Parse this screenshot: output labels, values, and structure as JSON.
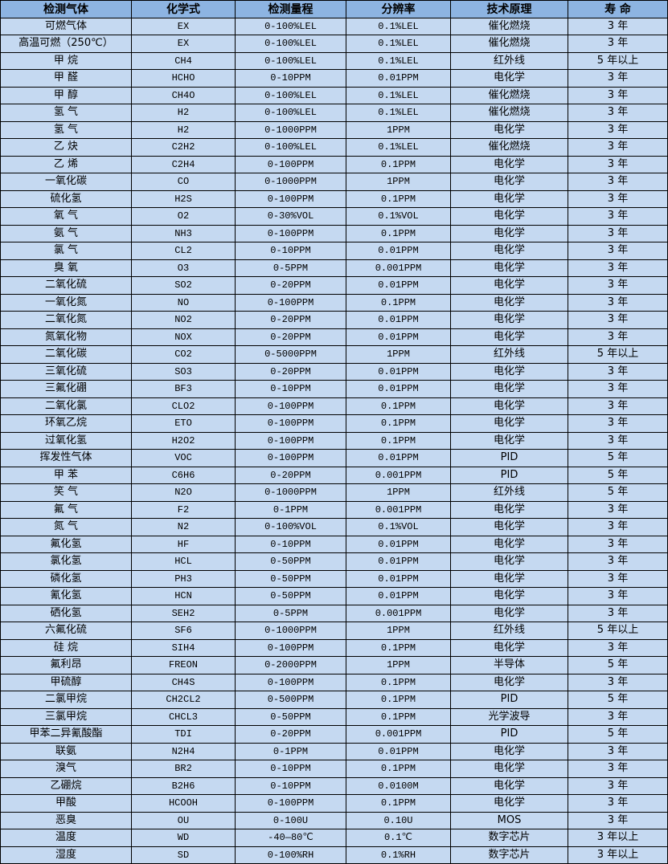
{
  "colors": {
    "header_bg": "#8db4e2",
    "row_bg": "#c5d9f1",
    "border": "#000000"
  },
  "table": {
    "headers": [
      "检测气体",
      "化学式",
      "检测量程",
      "分辨率",
      "技术原理",
      "寿 命"
    ],
    "rows": [
      [
        "可燃气体",
        "EX",
        "0-100%LEL",
        "0.1%LEL",
        "催化燃烧",
        "3 年"
      ],
      [
        "高温可燃（250℃）",
        "EX",
        "0-100%LEL",
        "0.1%LEL",
        "催化燃烧",
        "3 年"
      ],
      [
        "甲 烷",
        "CH4",
        "0-100%LEL",
        "0.1%LEL",
        "红外线",
        "5 年以上"
      ],
      [
        "甲 醛",
        "HCHO",
        "0-10PPM",
        "0.01PPM",
        "电化学",
        "3 年"
      ],
      [
        "甲 醇",
        "CH4O",
        "0-100%LEL",
        "0.1%LEL",
        "催化燃烧",
        "3 年"
      ],
      [
        "氢 气",
        "H2",
        "0-100%LEL",
        "0.1%LEL",
        "催化燃烧",
        "3 年"
      ],
      [
        "氢 气",
        "H2",
        "0-1000PPM",
        "1PPM",
        "电化学",
        "3 年"
      ],
      [
        "乙 炔",
        "C2H2",
        "0-100%LEL",
        "0.1%LEL",
        "催化燃烧",
        "3 年"
      ],
      [
        "乙 烯",
        "C2H4",
        "0-100PPM",
        "0.1PPM",
        "电化学",
        "3 年"
      ],
      [
        "一氧化碳",
        "CO",
        "0-1000PPM",
        "1PPM",
        "电化学",
        "3 年"
      ],
      [
        "硫化氢",
        "H2S",
        "0-100PPM",
        "0.1PPM",
        "电化学",
        "3 年"
      ],
      [
        "氧 气",
        "O2",
        "0-30%VOL",
        "0.1%VOL",
        "电化学",
        "3 年"
      ],
      [
        "氨 气",
        "NH3",
        "0-100PPM",
        "0.1PPM",
        "电化学",
        "3 年"
      ],
      [
        "氯 气",
        "CL2",
        "0-10PPM",
        "0.01PPM",
        "电化学",
        "3 年"
      ],
      [
        "臭 氧",
        "O3",
        "0-5PPM",
        "0.001PPM",
        "电化学",
        "3 年"
      ],
      [
        "二氧化硫",
        "SO2",
        "0-20PPM",
        "0.01PPM",
        "电化学",
        "3 年"
      ],
      [
        "一氧化氮",
        "NO",
        "0-100PPM",
        "0.1PPM",
        "电化学",
        "3 年"
      ],
      [
        "二氧化氮",
        "NO2",
        "0-20PPM",
        "0.01PPM",
        "电化学",
        "3 年"
      ],
      [
        "氮氧化物",
        "NOX",
        "0-20PPM",
        "0.01PPM",
        "电化学",
        "3 年"
      ],
      [
        "二氧化碳",
        "CO2",
        "0-5000PPM",
        "1PPM",
        "红外线",
        "5 年以上"
      ],
      [
        "三氧化硫",
        "SO3",
        "0-20PPM",
        "0.01PPM",
        "电化学",
        "3 年"
      ],
      [
        "三氟化硼",
        "BF3",
        "0-10PPM",
        "0.01PPM",
        "电化学",
        "3 年"
      ],
      [
        "二氧化氯",
        "CLO2",
        "0-100PPM",
        "0.1PPM",
        "电化学",
        "3 年"
      ],
      [
        "环氧乙烷",
        "ETO",
        "0-100PPM",
        "0.1PPM",
        "电化学",
        "3 年"
      ],
      [
        "过氧化氢",
        "H2O2",
        "0-100PPM",
        "0.1PPM",
        "电化学",
        "3 年"
      ],
      [
        "挥发性气体",
        "VOC",
        "0-100PPM",
        "0.01PPM",
        "PID",
        "5 年"
      ],
      [
        "甲 苯",
        "C6H6",
        "0-20PPM",
        "0.001PPM",
        "PID",
        "5 年"
      ],
      [
        "笑 气",
        "N2O",
        "0-1000PPM",
        "1PPM",
        "红外线",
        "5 年"
      ],
      [
        "氟 气",
        "F2",
        "0-1PPM",
        "0.001PPM",
        "电化学",
        "3 年"
      ],
      [
        "氮 气",
        "N2",
        "0-100%VOL",
        "0.1%VOL",
        "电化学",
        "3 年"
      ],
      [
        "氟化氢",
        "HF",
        "0-10PPM",
        "0.01PPM",
        "电化学",
        "3 年"
      ],
      [
        "氯化氢",
        "HCL",
        "0-50PPM",
        "0.01PPM",
        "电化学",
        "3 年"
      ],
      [
        "磷化氢",
        "PH3",
        "0-50PPM",
        "0.01PPM",
        "电化学",
        "3 年"
      ],
      [
        "氰化氢",
        "HCN",
        "0-50PPM",
        "0.01PPM",
        "电化学",
        "3 年"
      ],
      [
        "硒化氢",
        "SEH2",
        "0-5PPM",
        "0.001PPM",
        "电化学",
        "3 年"
      ],
      [
        "六氟化硫",
        "SF6",
        "0-1000PPM",
        "1PPM",
        "红外线",
        "5 年以上"
      ],
      [
        "硅 烷",
        "SIH4",
        "0-100PPM",
        "0.1PPM",
        "电化学",
        "3 年"
      ],
      [
        "氟利昂",
        "FREON",
        "0-2000PPM",
        "1PPM",
        "半导体",
        "5 年"
      ],
      [
        "甲硫醇",
        "CH4S",
        "0-100PPM",
        "0.1PPM",
        "电化学",
        "3 年"
      ],
      [
        "二氯甲烷",
        "CH2CL2",
        "0-500PPM",
        "0.1PPM",
        "PID",
        "5 年"
      ],
      [
        "三氯甲烷",
        "CHCL3",
        "0-50PPM",
        "0.1PPM",
        "光学波导",
        "3 年"
      ],
      [
        "甲苯二异氰酸酯",
        "TDI",
        "0-20PPM",
        "0.001PPM",
        "PID",
        "5 年"
      ],
      [
        "联氨",
        "N2H4",
        "0-1PPM",
        "0.01PPM",
        "电化学",
        "3 年"
      ],
      [
        "溴气",
        "BR2",
        "0-10PPM",
        "0.1PPM",
        "电化学",
        "3 年"
      ],
      [
        "乙硼烷",
        "B2H6",
        "0-10PPM",
        "0.0100M",
        "电化学",
        "3 年"
      ],
      [
        "甲酸",
        "HCOOH",
        "0-100PPM",
        "0.1PPM",
        "电化学",
        "3 年"
      ],
      [
        "恶臭",
        "OU",
        "0-100U",
        "0.10U",
        "MOS",
        "3 年"
      ],
      [
        "温度",
        "WD",
        "-40—80℃",
        "0.1℃",
        "数字芯片",
        "3 年以上"
      ],
      [
        "湿度",
        "SD",
        "0-100%RH",
        "0.1%RH",
        "数字芯片",
        "3 年以上"
      ]
    ]
  }
}
